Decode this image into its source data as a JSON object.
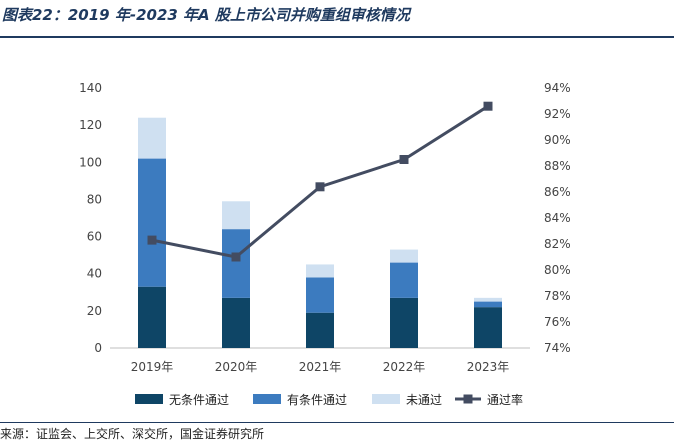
{
  "title": "图表22：2019 年-2023 年A 股上市公司并购重组审核情况",
  "source": "来源：证监会、上交所、深交所，国金证券研究所",
  "chart_data": {
    "type": "bar",
    "stacked": true,
    "categories": [
      "2019年",
      "2020年",
      "2021年",
      "2022年",
      "2023年"
    ],
    "series": [
      {
        "name": "无条件通过",
        "values": [
          33,
          27,
          19,
          27,
          22
        ],
        "color": "#0e4566",
        "axis": "left"
      },
      {
        "name": "有条件通过",
        "values": [
          69,
          37,
          19,
          19,
          3
        ],
        "color": "#3c7bbf",
        "axis": "left"
      },
      {
        "name": "未通过",
        "values": [
          22,
          15,
          7,
          7,
          2
        ],
        "color": "#cfe0f1",
        "axis": "left"
      },
      {
        "name": "通过率",
        "type": "line",
        "values": [
          82.3,
          81.0,
          86.4,
          88.5,
          92.6
        ],
        "color": "#434c61",
        "axis": "right"
      }
    ],
    "y_left": {
      "min": 0,
      "max": 140,
      "ticks": [
        "0",
        "20",
        "40",
        "60",
        "80",
        "100",
        "120",
        "140"
      ]
    },
    "y_right": {
      "min": 74,
      "max": 94,
      "ticks": [
        "74%",
        "76%",
        "78%",
        "80%",
        "82%",
        "84%",
        "86%",
        "88%",
        "90%",
        "92%",
        "94%"
      ]
    },
    "legend": "bottom",
    "grid": false
  }
}
